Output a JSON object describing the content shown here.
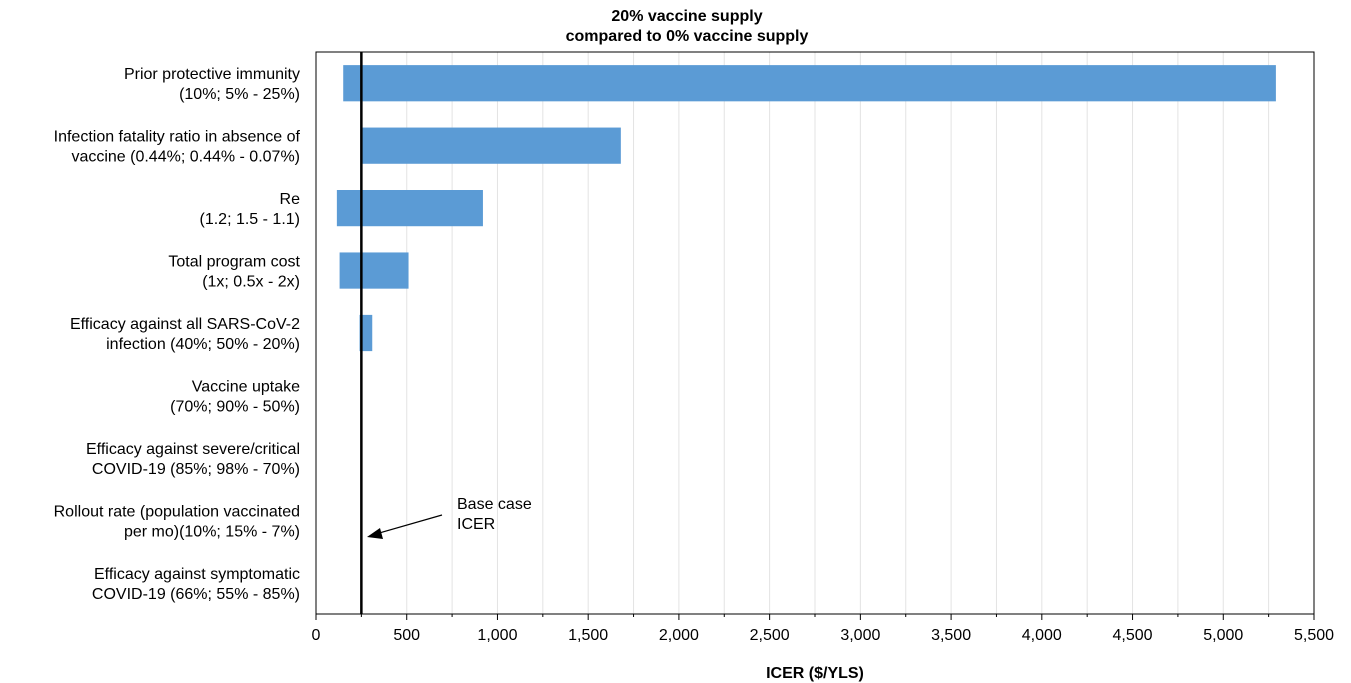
{
  "chart_data": {
    "type": "bar",
    "orientation": "horizontal",
    "subtype": "tornado",
    "title": [
      "20% vaccine supply",
      "compared to 0% vaccine supply"
    ],
    "xlabel": "ICER ($/YLS)",
    "ylabel": "",
    "xlim": [
      0,
      5500
    ],
    "x_ticks": [
      0,
      500,
      1000,
      1500,
      2000,
      2500,
      3000,
      3500,
      4000,
      4500,
      5000,
      5500
    ],
    "x_tick_labels": [
      "0",
      "500",
      "1,000",
      "1,500",
      "2,000",
      "2,500",
      "3,000",
      "3,500",
      "4,000",
      "4,500",
      "5,000",
      "5,500"
    ],
    "grid": "vertical",
    "bar_color": "#5b9bd5",
    "base_case": 250,
    "categories": [
      [
        "Prior protective immunity",
        "(10%; 5% - 25%)"
      ],
      [
        "Infection fatality ratio in absence of",
        "vaccine (0.44%; 0.44% - 0.07%)"
      ],
      [
        "Re",
        "(1.2; 1.5 - 1.1)"
      ],
      [
        "Total program cost",
        "(1x; 0.5x - 2x)"
      ],
      [
        "Efficacy against all SARS-CoV-2",
        "infection (40%; 50% - 20%)"
      ],
      [
        "Vaccine uptake",
        "(70%; 90% - 50%)"
      ],
      [
        "Efficacy against severe/critical",
        "COVID-19 (85%; 98% - 70%)"
      ],
      [
        "Rollout rate (population vaccinated",
        "per mo)(10%; 15% - 7%)"
      ],
      [
        "Efficacy against symptomatic",
        "COVID-19 (66%; 55% - 85%)"
      ]
    ],
    "ranges": [
      [
        150,
        5290
      ],
      [
        250,
        1680
      ],
      [
        115,
        920
      ],
      [
        130,
        510
      ],
      [
        240,
        310
      ],
      [
        250,
        250
      ],
      [
        250,
        250
      ],
      [
        250,
        250
      ],
      [
        250,
        250
      ]
    ],
    "annotation": [
      "Base case",
      "ICER"
    ]
  }
}
